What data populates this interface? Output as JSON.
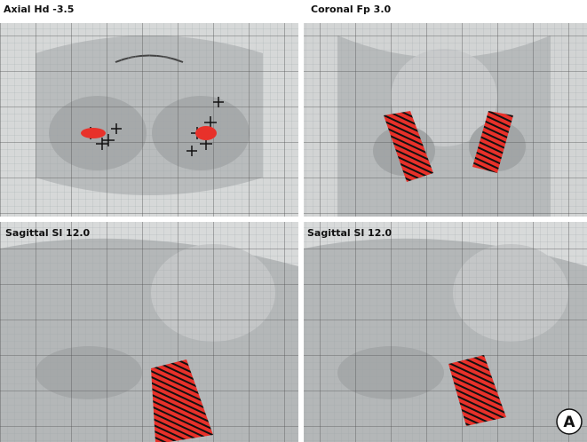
{
  "panels": [
    {
      "title": "Axial Hd -3.5"
    },
    {
      "title": "Coronal Fp 3.0"
    },
    {
      "title": "Sagittal Sl 12.0"
    },
    {
      "title": "Sagittal Sl 12.0"
    }
  ],
  "panel_label": "A"
}
